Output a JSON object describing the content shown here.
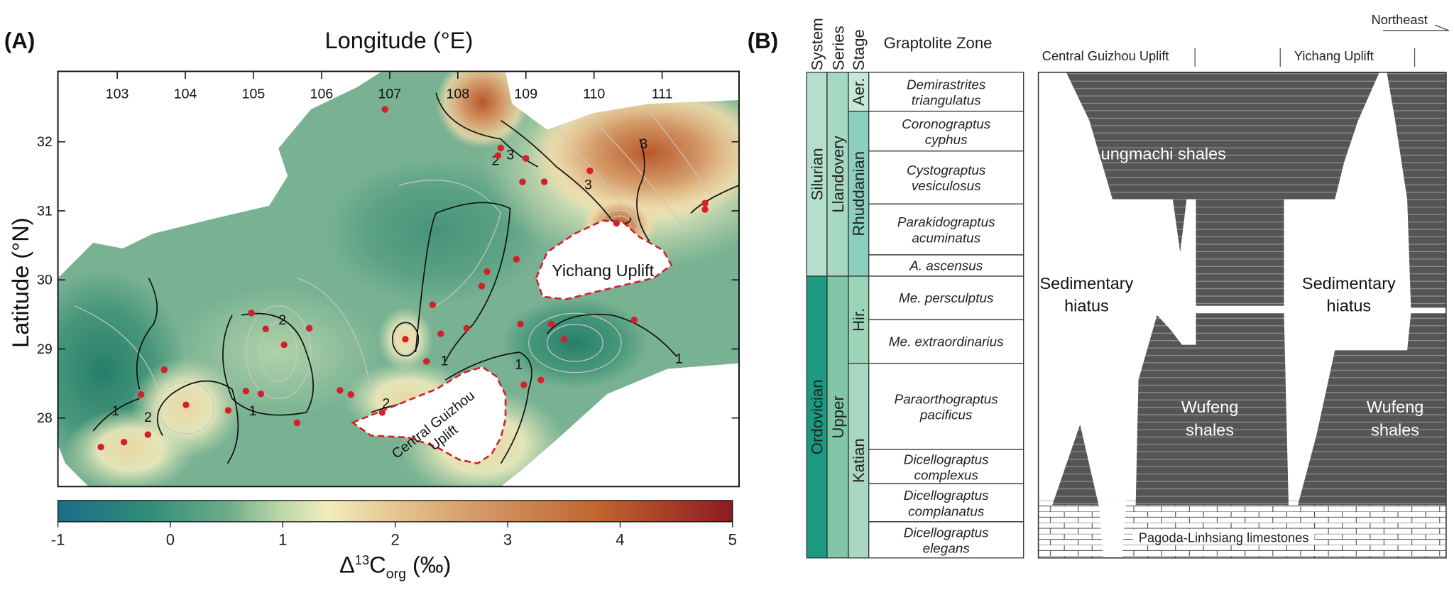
{
  "panel_a": {
    "label": "(A)",
    "x_axis_title": "Longitude (°E)",
    "y_axis_title": "Latitude (°N)",
    "lon_ticks": [
      "103",
      "104",
      "105",
      "106",
      "107",
      "108",
      "109",
      "110",
      "111"
    ],
    "lat_ticks": [
      "32",
      "31",
      "30",
      "29",
      "28"
    ],
    "uplifts": {
      "yichang": "Yichang Uplift",
      "central_guizhou_line1": "Central Guizhou",
      "central_guizhou_line2": "Uplift"
    },
    "contour_labels": [
      "1",
      "1",
      "1",
      "1",
      "2",
      "2",
      "2",
      "2",
      "3",
      "3",
      "3",
      "1"
    ],
    "colorbar": {
      "ticks": [
        "-1",
        "0",
        "1",
        "2",
        "3",
        "4",
        "5"
      ],
      "range": [
        -1,
        5
      ],
      "title_prefix": "Δ",
      "title_sup": "13",
      "title_main": "C",
      "title_sub": "org",
      "title_suffix": " (‰)",
      "stops": [
        "#1d6c8c",
        "#2c8b78",
        "#6dab89",
        "#bcd8a9",
        "#f2ecbc",
        "#e6c590",
        "#d49a68",
        "#c0652f",
        "#8e1a22"
      ]
    },
    "sample_sites": [
      [
        106.93,
        32.47
      ],
      [
        108.63,
        31.91
      ],
      [
        108.59,
        31.8
      ],
      [
        109.0,
        31.76
      ],
      [
        109.94,
        31.58
      ],
      [
        108.95,
        31.42
      ],
      [
        109.27,
        31.42
      ],
      [
        111.63,
        31.11
      ],
      [
        111.63,
        31.02
      ],
      [
        110.33,
        30.82
      ],
      [
        108.86,
        30.3
      ],
      [
        108.43,
        30.12
      ],
      [
        108.35,
        29.91
      ],
      [
        107.63,
        29.64
      ],
      [
        104.97,
        29.52
      ],
      [
        105.18,
        29.29
      ],
      [
        105.45,
        29.06
      ],
      [
        105.82,
        29.3
      ],
      [
        107.23,
        29.14
      ],
      [
        108.13,
        29.3
      ],
      [
        107.75,
        29.22
      ],
      [
        108.92,
        29.36
      ],
      [
        109.37,
        29.36
      ],
      [
        109.56,
        29.14
      ],
      [
        110.59,
        29.42
      ],
      [
        107.54,
        28.82
      ],
      [
        103.69,
        28.7
      ],
      [
        103.35,
        28.34
      ],
      [
        104.89,
        28.39
      ],
      [
        105.11,
        28.35
      ],
      [
        104.63,
        28.11
      ],
      [
        104.01,
        28.19
      ],
      [
        105.64,
        27.93
      ],
      [
        106.43,
        28.34
      ],
      [
        106.27,
        28.4
      ],
      [
        106.89,
        28.08
      ],
      [
        108.97,
        28.48
      ],
      [
        109.22,
        28.55
      ],
      [
        103.1,
        27.65
      ],
      [
        102.76,
        27.58
      ],
      [
        103.45,
        27.76
      ]
    ],
    "site_color": "#d4202a"
  },
  "panel_b": {
    "label": "(B)",
    "headers": {
      "system": "System",
      "series": "Series",
      "stage": "Stage",
      "zone": "Graptolite Zone"
    },
    "systems": [
      {
        "name": "Silurian",
        "color": "#b4dfcc"
      },
      {
        "name": "Ordovician",
        "color": "#1b9a80"
      }
    ],
    "series": [
      {
        "name": "Llandovery",
        "color": "#a6d8c4"
      },
      {
        "name": "Upper",
        "color": "#80c6a7"
      }
    ],
    "stages": [
      {
        "name": "Aer.",
        "color": "#c5e8d9"
      },
      {
        "name": "Rhuddanian",
        "color": "#8ccfbf"
      },
      {
        "name": "Hir.",
        "color": "#9bd5b7"
      },
      {
        "name": "Katian",
        "color": "#a8d9c0"
      }
    ],
    "zones": [
      [
        "Demirastrites",
        "triangulatus"
      ],
      [
        "Coronograptus",
        "cyphus"
      ],
      [
        "Cystograptus",
        "vesiculosus"
      ],
      [
        "Parakidograptus",
        "acuminatus"
      ],
      [
        "A. ascensus",
        ""
      ],
      [
        "Me. persculptus",
        ""
      ],
      [
        "Me. extraordinarius",
        ""
      ],
      [
        "Paraorthograptus",
        "pacificus"
      ],
      [
        "Dicellograptus",
        "complexus"
      ],
      [
        "Dicellograptus",
        "complanatus"
      ],
      [
        "Dicellograptus",
        "elegans"
      ]
    ],
    "section": {
      "direction": "Northeast",
      "left_region": "Central Guizhou Uplift",
      "right_region": "Yichang Uplift",
      "lungmachi": "Lungmachi shales",
      "hiatus_l1": "Sedimentary",
      "hiatus_l2": "hiatus",
      "wufeng_l1": "Wufeng",
      "wufeng_l2": "shales",
      "limestone": "Pagoda-Linhsiang limestones",
      "shale_color": "#555555"
    }
  }
}
